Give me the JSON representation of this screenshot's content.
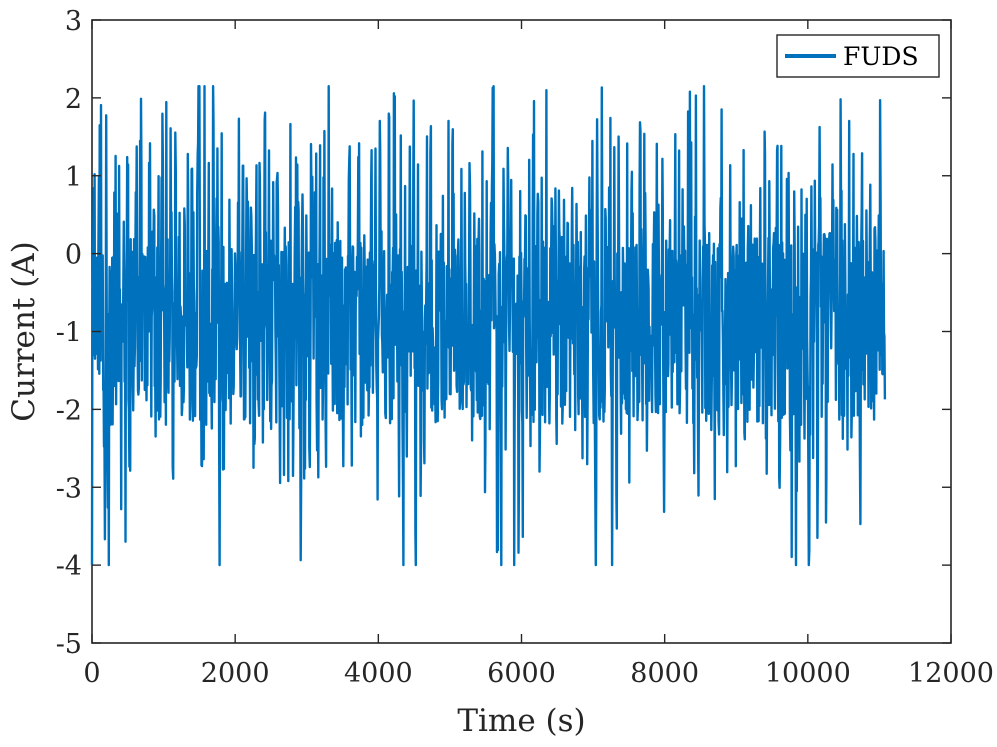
{
  "chart_data": {
    "type": "line",
    "title": "",
    "xlabel": "Time (s)",
    "ylabel": "Current (A)",
    "xlim": [
      0,
      12000
    ],
    "ylim": [
      -5,
      3
    ],
    "xticks": [
      0,
      2000,
      4000,
      6000,
      8000,
      10000,
      12000
    ],
    "xtick_labels": [
      "0",
      "2000",
      "4000",
      "6000",
      "8000",
      "10000",
      "12000"
    ],
    "yticks": [
      -5,
      -4,
      -3,
      -2,
      -1,
      0,
      1,
      2,
      3
    ],
    "ytick_labels": [
      "-5",
      "-4",
      "-3",
      "-2",
      "-1",
      "0",
      "1",
      "2",
      "3"
    ],
    "grid": false,
    "box": true,
    "legend": {
      "position": "top-right"
    },
    "series": [
      {
        "name": "FUDS",
        "color": "#0072BD",
        "cycle_period_s": 1372,
        "x_range": [
          0,
          11080
        ],
        "y_range": [
          -4.0,
          2.15
        ],
        "profile_one_cycle": [
          [
            0,
            -2.8
          ],
          [
            30,
            1.15
          ],
          [
            60,
            -2.2
          ],
          [
            90,
            0.5
          ],
          [
            120,
            2.15
          ],
          [
            150,
            -1.2
          ],
          [
            180,
            -3.4
          ],
          [
            200,
            1.5
          ],
          [
            230,
            -4.0
          ],
          [
            260,
            1.3
          ],
          [
            290,
            -3.2
          ],
          [
            320,
            2.0
          ],
          [
            350,
            -1.8
          ],
          [
            380,
            1.6
          ],
          [
            410,
            -4.0
          ],
          [
            440,
            0.9
          ],
          [
            470,
            -3.2
          ],
          [
            500,
            1.4
          ],
          [
            530,
            -2.5
          ],
          [
            560,
            1.15
          ],
          [
            590,
            -1.4
          ],
          [
            620,
            0.6
          ],
          [
            650,
            -2.6
          ],
          [
            680,
            1.3
          ],
          [
            710,
            -1.0
          ],
          [
            740,
            0.5
          ],
          [
            770,
            -2.2
          ],
          [
            800,
            1.15
          ],
          [
            830,
            -1.6
          ],
          [
            860,
            1.3
          ],
          [
            890,
            -2.4
          ],
          [
            920,
            0.7
          ],
          [
            950,
            -1.3
          ],
          [
            980,
            1.0
          ],
          [
            1010,
            -2.1
          ],
          [
            1040,
            1.3
          ],
          [
            1070,
            -1.5
          ],
          [
            1100,
            0.8
          ],
          [
            1130,
            -2.5
          ],
          [
            1160,
            1.15
          ],
          [
            1190,
            -1.9
          ],
          [
            1220,
            0.8
          ],
          [
            1250,
            -2.7
          ],
          [
            1280,
            1.3
          ],
          [
            1310,
            -1.7
          ],
          [
            1340,
            0.5
          ],
          [
            1372,
            -2.8
          ]
        ]
      }
    ]
  }
}
